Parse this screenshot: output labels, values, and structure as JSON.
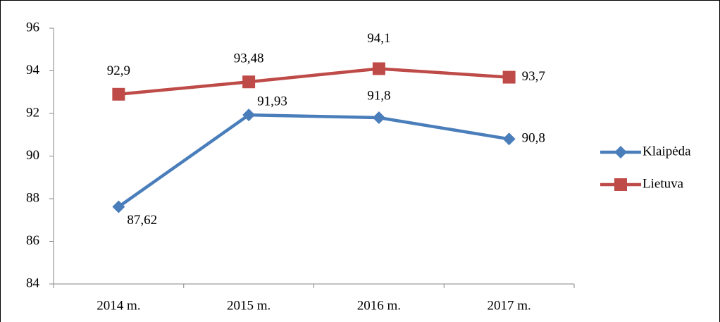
{
  "chart_data": {
    "type": "line",
    "categories": [
      "2014 m.",
      "2015 m.",
      "2016 m.",
      "2017 m."
    ],
    "series": [
      {
        "name": "Klaipėda",
        "color": "#4a7ebb",
        "marker": "diamond",
        "values": [
          87.62,
          91.93,
          91.8,
          90.8
        ],
        "value_labels": [
          "87,62",
          "91,93",
          "91,8",
          "90,8"
        ]
      },
      {
        "name": "Lietuva",
        "color": "#be4b48",
        "marker": "square",
        "values": [
          92.9,
          93.48,
          94.1,
          93.7
        ],
        "value_labels": [
          "92,9",
          "93,48",
          "94,1",
          "93,7"
        ]
      }
    ],
    "ylim": [
      84,
      96
    ],
    "yticks": [
      84,
      86,
      88,
      90,
      92,
      94,
      96
    ],
    "grid": false,
    "legend": "right"
  }
}
